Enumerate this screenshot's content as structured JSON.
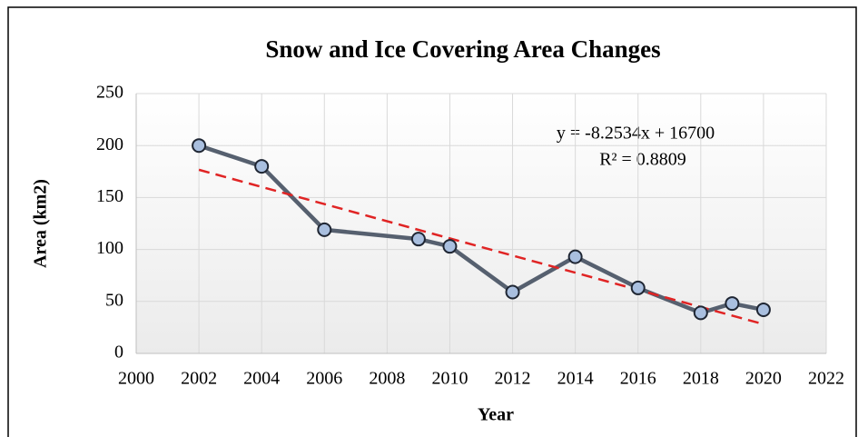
{
  "chart_data": {
    "type": "line",
    "title": "Snow and Ice Covering Area Changes",
    "x_label": "Year",
    "y_label": "Area (km2)",
    "x": [
      2002,
      2004,
      2006,
      2009,
      2010,
      2012,
      2014,
      2016,
      2018,
      2019,
      2020
    ],
    "values": [
      200,
      180,
      119,
      110,
      103,
      59,
      93,
      63,
      39,
      48,
      42
    ],
    "color": "#56606f",
    "marker_color": "#a9bfdf",
    "xlim": [
      2000,
      2022
    ],
    "xticks": [
      2000,
      2002,
      2004,
      2006,
      2008,
      2010,
      2012,
      2014,
      2016,
      2018,
      2020,
      2022
    ],
    "ylim": [
      0,
      250
    ],
    "yticks": [
      0,
      50,
      100,
      150,
      200,
      250
    ],
    "grid": true,
    "trendline": {
      "equation": "y = -8.2534x + 16700",
      "r_squared": "R² = 0.8809",
      "slope": -8.2534,
      "intercept": 16700,
      "xrange": [
        2002,
        2020
      ],
      "color": "#e02424"
    }
  }
}
